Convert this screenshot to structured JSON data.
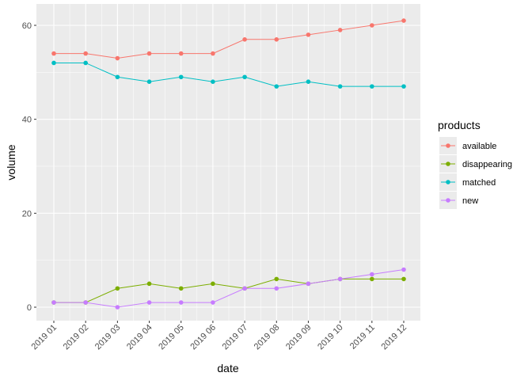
{
  "chart_data": {
    "type": "line",
    "title": "",
    "xlabel": "date",
    "ylabel": "volume",
    "categories": [
      "2019 01",
      "2019 02",
      "2019 03",
      "2019 04",
      "2019 05",
      "2019 06",
      "2019 07",
      "2019 08",
      "2019 09",
      "2019 10",
      "2019 11",
      "2019 12"
    ],
    "yticks": [
      0,
      20,
      40,
      60
    ],
    "ylim": [
      -2.5,
      64
    ],
    "grid": true,
    "legend_title": "products",
    "legend_position": "right",
    "series": [
      {
        "name": "available",
        "color": "#F8766D",
        "values": [
          54,
          54,
          53,
          54,
          54,
          54,
          57,
          57,
          58,
          59,
          60,
          61
        ]
      },
      {
        "name": "disappearing",
        "color": "#7CAE00",
        "values": [
          1,
          1,
          4,
          5,
          4,
          5,
          4,
          6,
          5,
          6,
          6,
          6
        ]
      },
      {
        "name": "matched",
        "color": "#00BFC4",
        "values": [
          52,
          52,
          49,
          48,
          49,
          48,
          49,
          47,
          48,
          47,
          47,
          47
        ]
      },
      {
        "name": "new",
        "color": "#C77CFF",
        "values": [
          1,
          1,
          0,
          1,
          1,
          1,
          4,
          4,
          5,
          6,
          7,
          8
        ]
      }
    ]
  }
}
